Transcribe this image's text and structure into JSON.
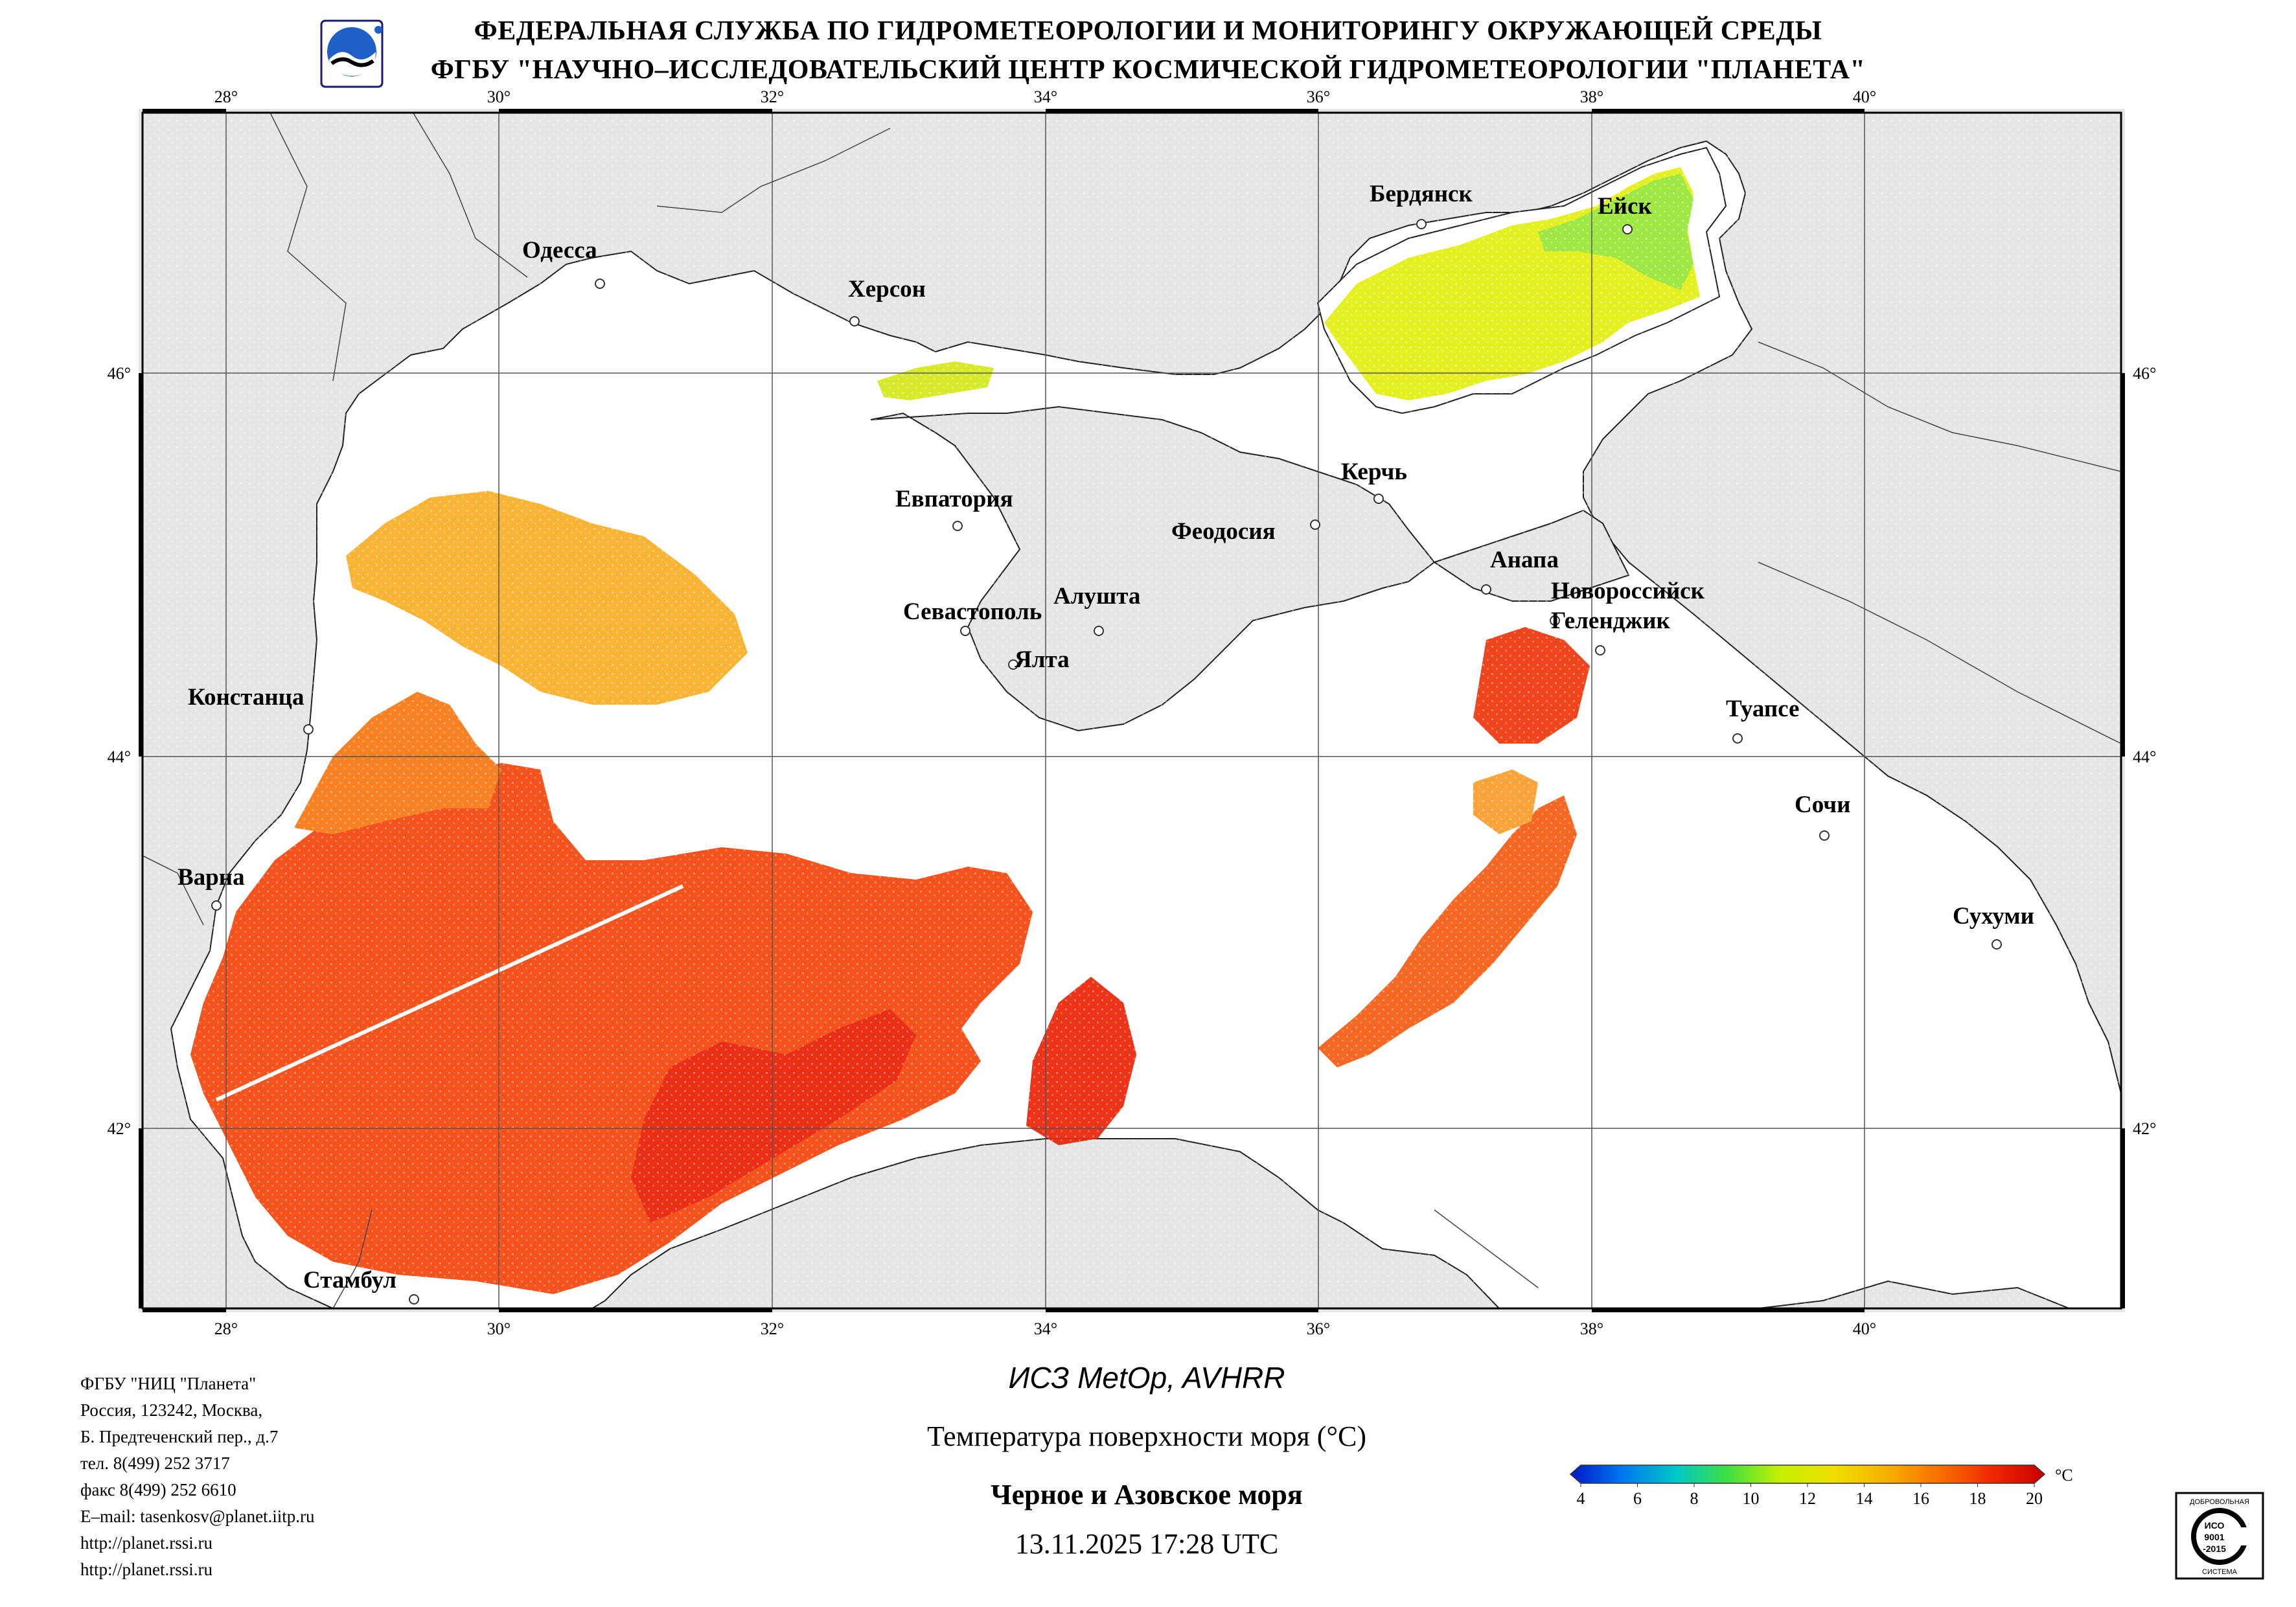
{
  "header": {
    "line1": "ФЕДЕРАЛЬНАЯ СЛУЖБА ПО ГИДРОМЕТЕОРОЛОГИИ И МОНИТОРИНГУ ОКРУЖАЮЩЕЙ СРЕДЫ",
    "line2": "ФГБУ \"НАУЧНО–ИССЛЕДОВАТЕЛЬСКИЙ ЦЕНТР КОСМИЧЕСКОЙ ГИДРОМЕТЕОРОЛОГИИ \"ПЛАНЕТА\""
  },
  "map": {
    "lon_labels": [
      "28°",
      "30°",
      "32°",
      "34°",
      "36°",
      "38°",
      "40°"
    ],
    "lat_labels": [
      "46°",
      "44°",
      "42°"
    ],
    "colors": {
      "land": "#e6e6e6",
      "sea": "#ffffff",
      "border": "#000000",
      "grid": "#555555"
    },
    "cities": [
      {
        "name": "Одесса"
      },
      {
        "name": "Херсон"
      },
      {
        "name": "Бердянск"
      },
      {
        "name": "Ейск"
      },
      {
        "name": "Евпатория"
      },
      {
        "name": "Керчь"
      },
      {
        "name": "Феодосия"
      },
      {
        "name": "Анапа"
      },
      {
        "name": "Новороссийск"
      },
      {
        "name": "Геленджик"
      },
      {
        "name": "Алушта"
      },
      {
        "name": "Севастополь"
      },
      {
        "name": "Ялта"
      },
      {
        "name": "Констанца"
      },
      {
        "name": "Туапсе"
      },
      {
        "name": "Сочи"
      },
      {
        "name": "Варна"
      },
      {
        "name": "Сухуми"
      },
      {
        "name": "Стамбул"
      }
    ]
  },
  "caption": {
    "satellite": "ИСЗ MetOp, AVHRR",
    "parameter": "Температура поверхности моря (°С)",
    "region": "Черное и Азовское моря",
    "datetime": "13.11.2025 17:28 UTC"
  },
  "organization": {
    "lines": [
      "ФГБУ \"НИЦ \"Планета\"",
      "Россия, 123242, Москва,",
      "Б. Предтеченский пер., д.7",
      "тел. 8(499) 252 3717",
      "факс 8(499) 252 6610",
      "E–mail: tasenkosv@planet.iitp.ru",
      "http://planet.rssi.ru",
      "http://planet.rssi.ru"
    ]
  },
  "colorbar": {
    "unit": "°C",
    "ticks": [
      "4",
      "6",
      "8",
      "10",
      "12",
      "14",
      "16",
      "18",
      "20"
    ],
    "min": 4,
    "max": 20,
    "stops": [
      "#0018c8",
      "#0078f0",
      "#00c8c8",
      "#40e040",
      "#c8f000",
      "#f0e000",
      "#f8b000",
      "#f87000",
      "#f02800",
      "#c80000"
    ]
  },
  "cert": {
    "top": "ДОБРОВОЛЬНАЯ",
    "mid1": "ИСО",
    "mid2": "9001",
    "mid3": "-2015",
    "bottom": "СИСТЕМА"
  }
}
